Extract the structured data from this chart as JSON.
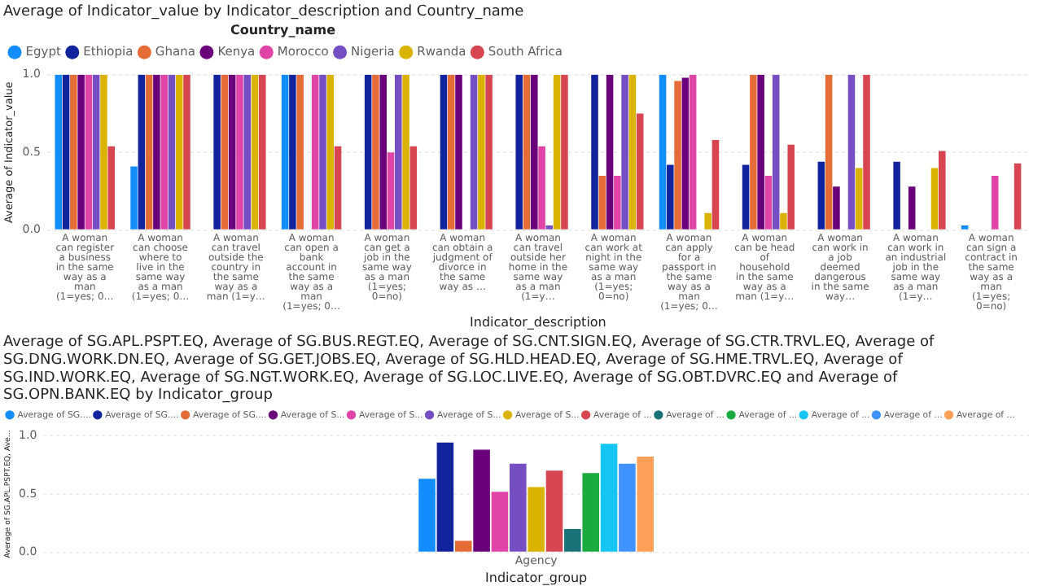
{
  "chart_data": [
    {
      "type": "bar",
      "title": "Average of Indicator_value by Indicator_description and Country_name",
      "legend_title": "Country_name",
      "legend": "top left",
      "grid": "y",
      "xlabel": "Indicator_description",
      "ylabel": "Average of Indicator_value",
      "categories": [
        "A woman can register a business in the same way as a man (1=yes; 0…",
        "A woman can choose where to live in the same way as a man (1=yes; 0…",
        "A woman can travel outside the country in the same way as a man (1=y…",
        "A woman can open a bank account in the same way as a man (1=yes; 0…",
        "A woman can get a job in the same way as a man (1=yes; 0=no)",
        "A woman can obtain a judgment of divorce in the same way as …",
        "A woman can travel outside her home in the same way as a man (1=y…",
        "A woman can work at night in the same way as a man (1=yes; 0=no)",
        "A woman can apply for a passport in the same way as a man (1=yes; 0…",
        "A woman can be head of household in the same way as a man (1=y…",
        "A woman can work in a job deemed dangerous in the same way…",
        "A woman can work in an industrial job in the same way as a man (1=y…",
        "A woman can sign a contract in the same way as a man (1=yes; 0=no)"
      ],
      "ylim": [
        0,
        1
      ],
      "yticks": [
        {
          "value": 0,
          "label": "0.0"
        },
        {
          "value": 0.5,
          "label": "0.5"
        },
        {
          "value": 1,
          "label": "1.0"
        }
      ],
      "series": [
        {
          "name": "Egypt",
          "color": "#118dff",
          "values": [
            1,
            0.41,
            null,
            1,
            null,
            null,
            null,
            null,
            1,
            null,
            null,
            null,
            0.03
          ]
        },
        {
          "name": "Ethiopia",
          "color": "#12239e",
          "values": [
            1,
            1,
            1,
            1,
            1,
            1,
            1,
            1,
            0.42,
            0.42,
            0.44,
            0.44,
            null
          ]
        },
        {
          "name": "Ghana",
          "color": "#e66c37",
          "values": [
            1,
            1,
            1,
            1,
            1,
            1,
            1,
            0.35,
            0.96,
            1,
            1,
            null,
            null
          ]
        },
        {
          "name": "Kenya",
          "color": "#6b007b",
          "values": [
            1,
            1,
            1,
            null,
            1,
            1,
            1,
            1,
            0.98,
            1,
            0.28,
            0.28,
            null
          ]
        },
        {
          "name": "Morocco",
          "color": "#e044a7",
          "values": [
            1,
            1,
            1,
            1,
            0.5,
            null,
            0.54,
            0.35,
            1,
            0.35,
            null,
            null,
            0.35
          ]
        },
        {
          "name": "Nigeria",
          "color": "#744ec2",
          "values": [
            1,
            1,
            1,
            1,
            1,
            1,
            0.03,
            1,
            null,
            1,
            1,
            null,
            null
          ]
        },
        {
          "name": "Rwanda",
          "color": "#d9b300",
          "values": [
            1,
            1,
            1,
            1,
            1,
            1,
            1,
            1,
            0.11,
            0.11,
            0.4,
            0.4,
            null
          ]
        },
        {
          "name": "South Africa",
          "color": "#d64550",
          "values": [
            0.54,
            1,
            1,
            0.54,
            0.54,
            1,
            1,
            0.75,
            0.58,
            0.55,
            1,
            0.51,
            0.43
          ]
        }
      ]
    },
    {
      "type": "bar",
      "title": "Average of SG.APL.PSPT.EQ, Average of SG.BUS.REGT.EQ, Average of SG.CNT.SIGN.EQ, Average of SG.CTR.TRVL.EQ, Average of SG.DNG.WORK.DN.EQ, Average of SG.GET.JOBS.EQ, Average of SG.HLD.HEAD.EQ, Average of SG.HME.TRVL.EQ, Average of SG.IND.WORK.EQ, Average of SG.NGT.WORK.EQ, Average of SG.LOC.LIVE.EQ, Average of SG.OBT.DVRC.EQ and Average of SG.OPN.BANK.EQ by Indicator_group",
      "legend": "top left",
      "grid": "y",
      "xlabel": "Indicator_group",
      "ylabel": "Average of SG.APL.PSPT.EQ, Ave...",
      "categories": [
        "Agency"
      ],
      "ylim": [
        0,
        1
      ],
      "yticks": [
        {
          "value": 0,
          "label": "0.0"
        },
        {
          "value": 0.5,
          "label": "0.5"
        },
        {
          "value": 1,
          "label": "1.0"
        }
      ],
      "series": [
        {
          "name": "Average of SG....",
          "color": "#118dff",
          "values": [
            0.63
          ]
        },
        {
          "name": "Average of SG....",
          "color": "#12239e",
          "values": [
            0.94
          ]
        },
        {
          "name": "Average of SG....",
          "color": "#e66c37",
          "values": [
            0.1
          ]
        },
        {
          "name": "Average of S...",
          "color": "#6b007b",
          "values": [
            0.88
          ]
        },
        {
          "name": "Average of S...",
          "color": "#e044a7",
          "values": [
            0.52
          ]
        },
        {
          "name": "Average of S...",
          "color": "#744ec2",
          "values": [
            0.76
          ]
        },
        {
          "name": "Average of S...",
          "color": "#d9b300",
          "values": [
            0.56
          ]
        },
        {
          "name": "Average of ...",
          "color": "#d64550",
          "values": [
            0.7
          ]
        },
        {
          "name": "Average of ...",
          "color": "#197278",
          "values": [
            0.2
          ]
        },
        {
          "name": "Average of ...",
          "color": "#1aab40",
          "values": [
            0.68
          ]
        },
        {
          "name": "Average of ...",
          "color": "#15c6f4",
          "values": [
            0.93
          ]
        },
        {
          "name": "Average of ...",
          "color": "#4092ff",
          "values": [
            0.76
          ]
        },
        {
          "name": "Average of ...",
          "color": "#ffa058",
          "values": [
            0.82
          ]
        }
      ]
    }
  ]
}
